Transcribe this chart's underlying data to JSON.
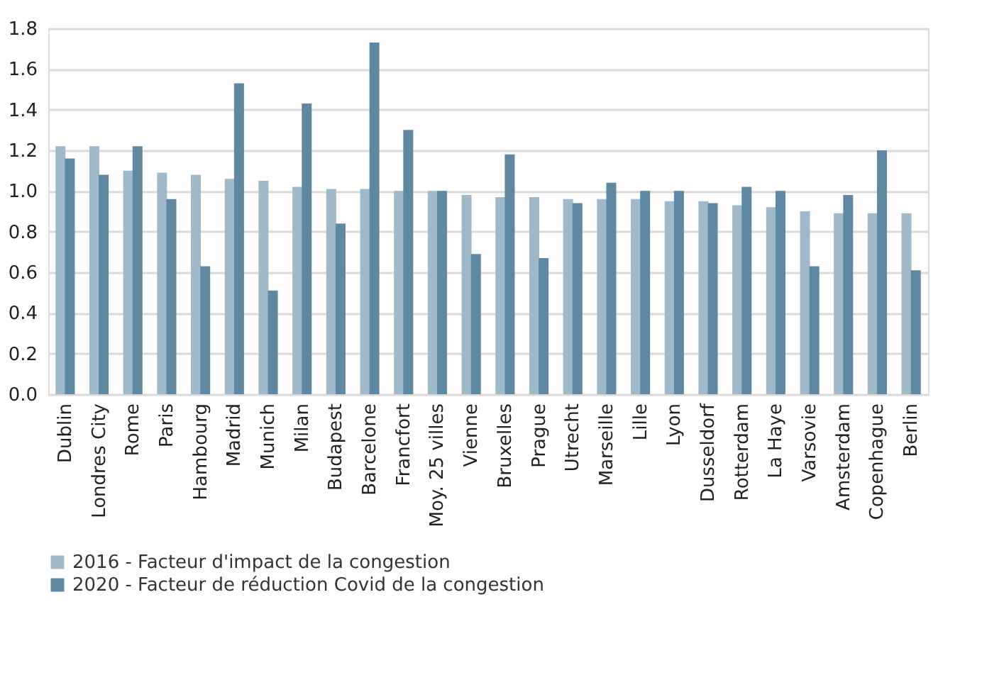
{
  "chart_data": {
    "type": "bar",
    "categories": [
      "Dublin",
      "Londres City",
      "Rome",
      "Paris",
      "Hambourg",
      "Madrid",
      "Munich",
      "Milan",
      "Budapest",
      "Barcelone",
      "Francfort",
      "Moy. 25 villes",
      "Vienne",
      "Bruxelles",
      "Prague",
      "Utrecht",
      "Marseille",
      "Lille",
      "Lyon",
      "Dusseldorf",
      "Rotterdam",
      "La Haye",
      "Varsovie",
      "Amsterdam",
      "Copenhague",
      "Berlin"
    ],
    "series": [
      {
        "name": "2016 - Facteur d'impact de la congestion",
        "color": "#a0b9c8",
        "values": [
          1.22,
          1.22,
          1.1,
          1.09,
          1.08,
          1.06,
          1.05,
          1.02,
          1.01,
          1.01,
          1.0,
          1.0,
          0.98,
          0.97,
          0.97,
          0.96,
          0.96,
          0.96,
          0.95,
          0.95,
          0.93,
          0.92,
          0.9,
          0.89,
          0.89,
          0.89
        ]
      },
      {
        "name": "2020 - Facteur de réduction Covid de la congestion",
        "color": "#5f88a3",
        "values": [
          1.16,
          1.08,
          1.22,
          0.96,
          0.63,
          1.53,
          0.51,
          1.43,
          0.84,
          1.73,
          1.3,
          1.0,
          0.69,
          1.18,
          0.67,
          0.94,
          1.04,
          1.0,
          1.0,
          0.94,
          1.02,
          1.0,
          0.63,
          0.98,
          1.2,
          0.61
        ]
      }
    ],
    "ylim": [
      0,
      1.8
    ],
    "yticks": [
      {
        "value": 0,
        "label": "0.0"
      },
      {
        "value": 0.2,
        "label": "0.2"
      },
      {
        "value": 0.4,
        "label": "0.4"
      },
      {
        "value": 0.6,
        "label": "0.6"
      },
      {
        "value": 0.8,
        "label": "0.8"
      },
      {
        "value": 1.0,
        "label": "1.0"
      },
      {
        "value": 1.2,
        "label": "1.2"
      },
      {
        "value": 1.4,
        "label": "1.4"
      },
      {
        "value": 1.6,
        "label": "1.6"
      },
      {
        "value": 1.8,
        "label": "1.8"
      }
    ],
    "grid": "y",
    "legend": "bottom"
  }
}
